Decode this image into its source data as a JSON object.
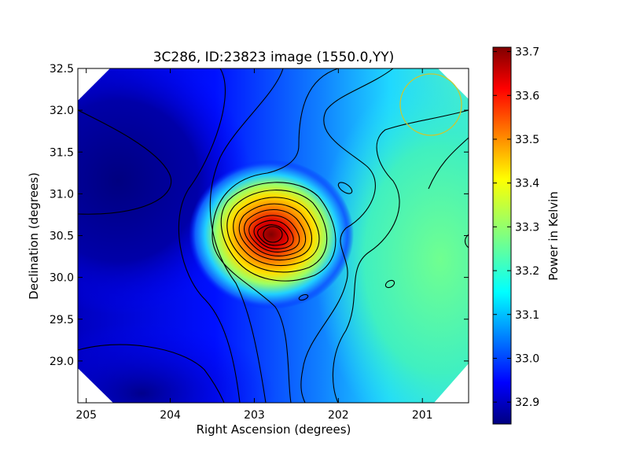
{
  "chart_data": {
    "type": "heatmap",
    "title": "3C286, ID:23823 image (1550.0,YY)",
    "xlabel": "Right Ascension (degrees)",
    "ylabel": "Declination (degrees)",
    "xlim": [
      205.1,
      200.45
    ],
    "ylim": [
      28.5,
      32.5
    ],
    "x_ticks": [
      205,
      204,
      203,
      202,
      201
    ],
    "y_ticks": [
      29.0,
      29.5,
      30.0,
      30.5,
      31.0,
      31.5,
      32.0,
      32.5
    ],
    "x_tick_labels": [
      "205",
      "204",
      "203",
      "202",
      "201"
    ],
    "y_tick_labels": [
      "29.0",
      "29.5",
      "30.0",
      "30.5",
      "31.0",
      "31.5",
      "32.0",
      "32.5"
    ],
    "colormap": "jet",
    "colorbar": {
      "label": "Power in Kelvin",
      "range": [
        32.85,
        33.71
      ],
      "ticks": [
        32.9,
        33.0,
        33.1,
        33.2,
        33.3,
        33.4,
        33.5,
        33.6,
        33.7
      ],
      "tick_labels": [
        "32.9",
        "33.0",
        "33.1",
        "33.2",
        "33.3",
        "33.4",
        "33.5",
        "33.6",
        "33.7"
      ]
    },
    "peak": {
      "ra": 202.75,
      "dec": 30.5,
      "value": 33.71
    },
    "field_values": {
      "min": 32.85,
      "max": 33.71
    },
    "contours": "on",
    "grid": "off",
    "beam_marker": {
      "ra": 200.9,
      "dec": 32.05,
      "color": "#c8c832"
    }
  }
}
